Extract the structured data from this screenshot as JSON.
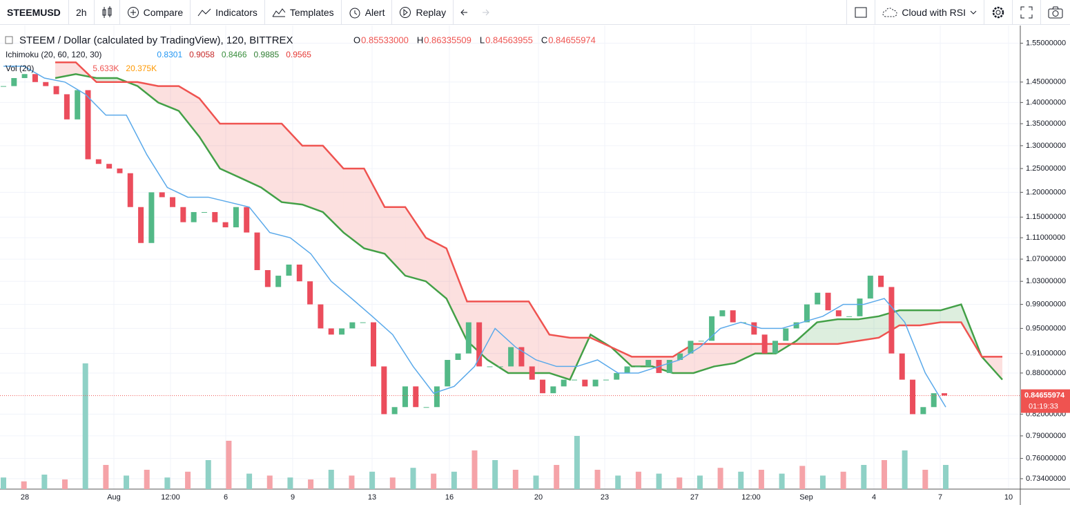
{
  "toolbar": {
    "symbol": "STEEMUSD",
    "interval": "2h",
    "buttons": [
      "Compare",
      "Indicators",
      "Templates",
      "Alert",
      "Replay"
    ],
    "layout_name": "Cloud with RSI"
  },
  "legend": {
    "title": "STEEM / Dollar (calculated by TradingView), 120, BITTREX",
    "ohlc": [
      {
        "key": "O",
        "value": "0.85533000"
      },
      {
        "key": "H",
        "value": "0.86335509"
      },
      {
        "key": "L",
        "value": "0.84563955"
      },
      {
        "key": "C",
        "value": "0.84655974"
      }
    ],
    "ichimoku_name": "Ichimoku (20, 60, 120, 30)",
    "ichimoku_values": [
      {
        "value": "0.8301",
        "color": "#2196f3"
      },
      {
        "value": "0.9058",
        "color": "#c62828"
      },
      {
        "value": "0.8466",
        "color": "#388e3c"
      },
      {
        "value": "0.9885",
        "color": "#2e7d32"
      },
      {
        "value": "0.9565",
        "color": "#e53935"
      }
    ],
    "volume_name": "Vol (20)",
    "volume_values": [
      {
        "value": "5.633K",
        "color": "#ef5350"
      },
      {
        "value": "20.375K",
        "color": "#ff9800"
      }
    ]
  },
  "chart_data": {
    "type": "candlestick",
    "scale": "log",
    "ylim": [
      0.721,
      1.592
    ],
    "yticks": [
      {
        "value": 1.55,
        "label": "1.55000000"
      },
      {
        "value": 1.45,
        "label": "1.45000000"
      },
      {
        "value": 1.4,
        "label": "1.40000000"
      },
      {
        "value": 1.35,
        "label": "1.35000000"
      },
      {
        "value": 1.3,
        "label": "1.30000000"
      },
      {
        "value": 1.25,
        "label": "1.25000000"
      },
      {
        "value": 1.2,
        "label": "1.20000000"
      },
      {
        "value": 1.15,
        "label": "1.15000000"
      },
      {
        "value": 1.11,
        "label": "1.11000000"
      },
      {
        "value": 1.07,
        "label": "1.07000000"
      },
      {
        "value": 1.03,
        "label": "1.03000000"
      },
      {
        "value": 0.99,
        "label": "0.99000000"
      },
      {
        "value": 0.95,
        "label": "0.95000000"
      },
      {
        "value": 0.91,
        "label": "0.91000000"
      },
      {
        "value": 0.88,
        "label": "0.88000000"
      },
      {
        "value": 0.82,
        "label": "0.82000000"
      },
      {
        "value": 0.79,
        "label": "0.79000000"
      },
      {
        "value": 0.76,
        "label": "0.76000000"
      },
      {
        "value": 0.734,
        "label": "0.73400000"
      }
    ],
    "xticks": [
      "28",
      "Aug",
      "12:00",
      "6",
      "9",
      "13",
      "16",
      "20",
      "23",
      "27",
      "12:00",
      "Sep",
      "4",
      "7",
      "10"
    ],
    "grid": true,
    "candles": {
      "up_color": "#53b987",
      "down_color": "#eb4d5c",
      "values": [
        1.44,
        1.46,
        1.47,
        1.45,
        1.44,
        1.42,
        1.36,
        1.43,
        1.27,
        1.26,
        1.25,
        1.24,
        1.17,
        1.1,
        1.2,
        1.19,
        1.17,
        1.14,
        1.16,
        1.16,
        1.14,
        1.13,
        1.17,
        1.12,
        1.05,
        1.02,
        1.04,
        1.06,
        1.03,
        0.99,
        0.95,
        0.94,
        0.95,
        0.96,
        0.96,
        0.89,
        0.82,
        0.83,
        0.86,
        0.83,
        0.83,
        0.86,
        0.9,
        0.91,
        0.96,
        0.89,
        0.89,
        0.89,
        0.92,
        0.89,
        0.87,
        0.85,
        0.86,
        0.87,
        0.87,
        0.86,
        0.87,
        0.87,
        0.88,
        0.89,
        0.89,
        0.9,
        0.88,
        0.9,
        0.91,
        0.93,
        0.93,
        0.97,
        0.98,
        0.96,
        0.96,
        0.94,
        0.91,
        0.93,
        0.95,
        0.96,
        0.99,
        1.01,
        0.98,
        0.97,
        0.97,
        1.0,
        1.04,
        1.02,
        0.91,
        0.87,
        0.82,
        0.83,
        0.85,
        0.8466
      ]
    },
    "tenkan": {
      "color": "#5aa9ea",
      "values": [
        1.49,
        1.49,
        1.46,
        1.45,
        1.42,
        1.37,
        1.37,
        1.28,
        1.21,
        1.19,
        1.19,
        1.18,
        1.17,
        1.12,
        1.11,
        1.08,
        1.03,
        1.0,
        0.97,
        0.94,
        0.89,
        0.85,
        0.86,
        0.89,
        0.95,
        0.92,
        0.9,
        0.89,
        0.89,
        0.9,
        0.88,
        0.88,
        0.89,
        0.9,
        0.92,
        0.95,
        0.96,
        0.95,
        0.95,
        0.96,
        0.97,
        0.99,
        0.99,
        1.0,
        0.96,
        0.88,
        0.83
      ]
    },
    "span_a": {
      "color": "#43a047",
      "values": [
        1.46,
        1.47,
        1.46,
        1.46,
        1.44,
        1.4,
        1.38,
        1.32,
        1.25,
        1.23,
        1.21,
        1.18,
        1.175,
        1.16,
        1.12,
        1.09,
        1.08,
        1.04,
        1.03,
        1.0,
        0.93,
        0.9,
        0.88,
        0.88,
        0.88,
        0.87,
        0.94,
        0.92,
        0.89,
        0.89,
        0.88,
        0.88,
        0.89,
        0.895,
        0.91,
        0.91,
        0.93,
        0.96,
        0.965,
        0.965,
        0.97,
        0.98,
        0.98,
        0.98,
        0.99,
        0.905,
        0.87
      ]
    },
    "span_b": {
      "color": "#ef5350",
      "values": [
        1.5,
        1.5,
        1.45,
        1.45,
        1.45,
        1.44,
        1.44,
        1.41,
        1.35,
        1.35,
        1.35,
        1.35,
        1.3,
        1.3,
        1.25,
        1.25,
        1.17,
        1.17,
        1.11,
        1.09,
        0.995,
        0.995,
        0.995,
        0.995,
        0.94,
        0.935,
        0.935,
        0.92,
        0.905,
        0.905,
        0.905,
        0.925,
        0.925,
        0.925,
        0.925,
        0.925,
        0.925,
        0.925,
        0.925,
        0.93,
        0.935,
        0.955,
        0.955,
        0.96,
        0.96,
        0.905,
        0.905
      ]
    },
    "cloud_colors": {
      "bear": "rgba(239,83,80,0.18)",
      "bull": "rgba(67,160,71,0.18)"
    },
    "volume": {
      "up_color": "#8fd1c6",
      "down_color": "#f5a3a8",
      "values": [
        12,
        8,
        15,
        10,
        130,
        25,
        14,
        20,
        12,
        18,
        30,
        50,
        16,
        14,
        12,
        10,
        20,
        14,
        18,
        12,
        22,
        16,
        18,
        40,
        30,
        20,
        14,
        25,
        55,
        20,
        14,
        18,
        16,
        12,
        14,
        22,
        18,
        20,
        16,
        24,
        14,
        18,
        25,
        30,
        40,
        20,
        25
      ]
    },
    "last_price": {
      "value": 0.84655974,
      "label": "0.84655974",
      "color": "#ef5350"
    },
    "countdown": "01:19:33"
  }
}
